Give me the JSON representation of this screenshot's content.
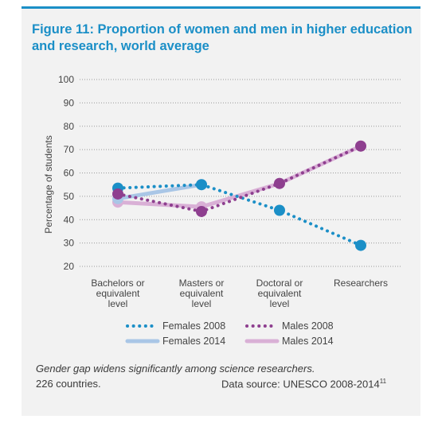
{
  "chart_data": {
    "type": "line",
    "title": "Figure 11: Proportion of women and men in higher education and research, world average",
    "ylabel": "Percentage of students",
    "xlabel": "",
    "ylim": [
      20,
      100
    ],
    "yticks": [
      20,
      30,
      40,
      50,
      60,
      70,
      80,
      90,
      100
    ],
    "categories": [
      [
        "Bachelors or",
        "equivalent",
        "level"
      ],
      [
        "Masters or",
        "equivalent",
        "level"
      ],
      [
        "Doctoral or",
        "equivalent",
        "level"
      ],
      [
        "Researchers"
      ]
    ],
    "grid": true,
    "legend_position": "bottom",
    "series": [
      {
        "name": "Females 2008",
        "color": "#1b8fc7",
        "style": "dotted",
        "values": [
          53.5,
          55,
          44,
          29
        ]
      },
      {
        "name": "Males 2008",
        "color": "#8e3f8f",
        "style": "dotted",
        "values": [
          51,
          43.5,
          55.5,
          71.5
        ]
      },
      {
        "name": "Females 2014",
        "color": "#a9c6e6",
        "style": "solid",
        "values": [
          49,
          55,
          null,
          null
        ]
      },
      {
        "name": "Males 2014",
        "color": "#d9b0d6",
        "style": "solid",
        "values": [
          47.5,
          45.5,
          55.5,
          71.5
        ]
      }
    ]
  },
  "footer": {
    "note": "Gender gap widens significantly among science researchers.",
    "countries": "226 countries.",
    "source": "Data source: UNESCO 2008-2014",
    "source_ref": "11"
  }
}
